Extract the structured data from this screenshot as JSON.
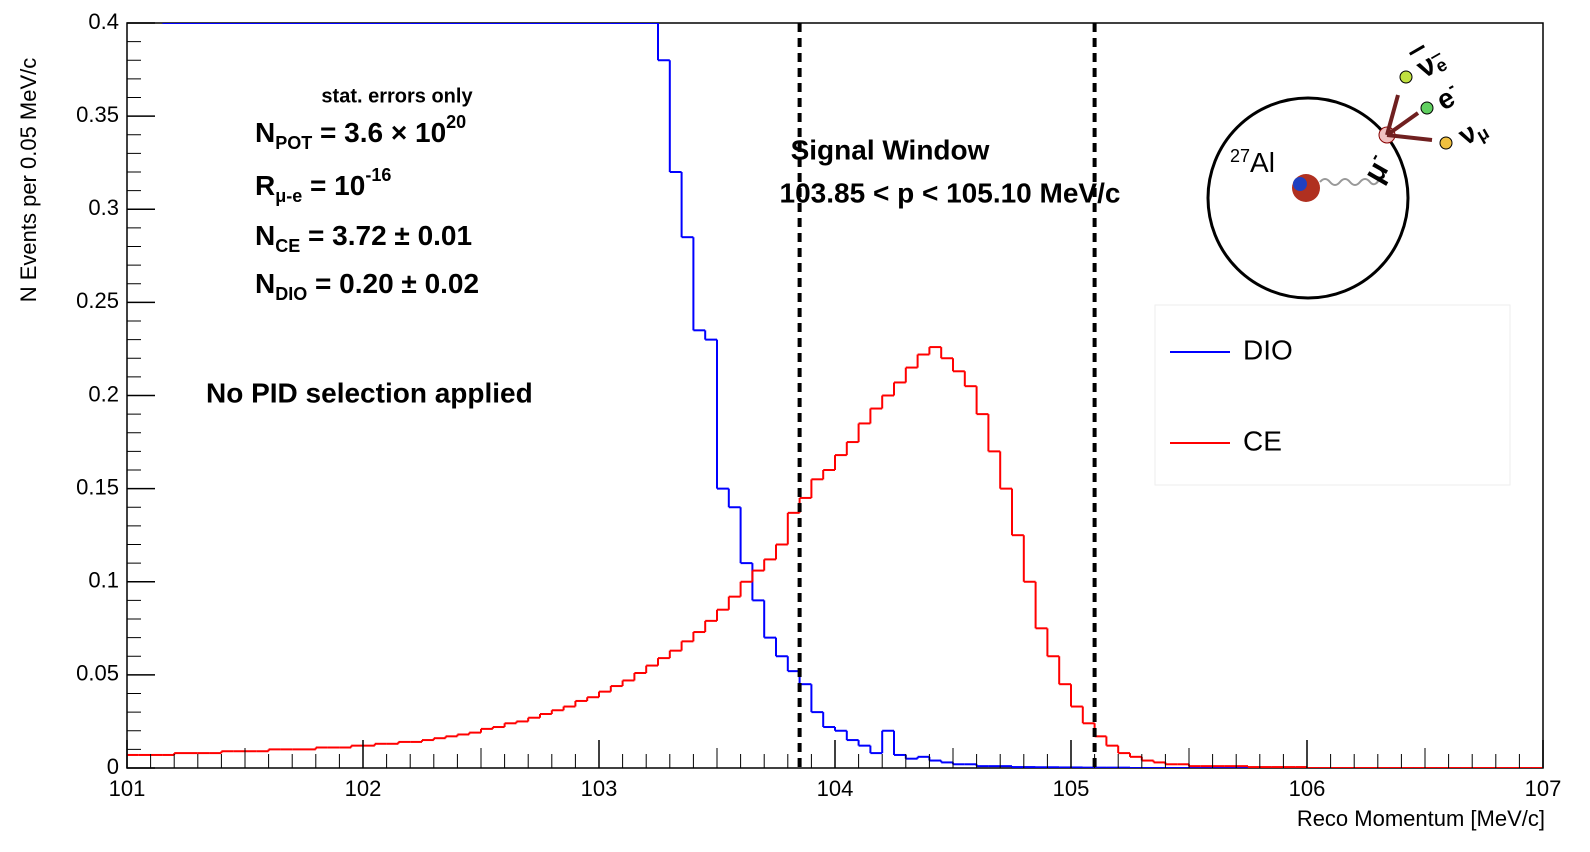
{
  "chart_data": {
    "type": "histogram",
    "xlabel": "Reco Momentum [MeV/c]",
    "ylabel": "N Events per 0.05 MeV/c",
    "xlim": [
      101,
      107
    ],
    "ylim": [
      0,
      0.4
    ],
    "xticks": [
      101,
      102,
      103,
      104,
      105,
      106,
      107
    ],
    "yticks": [
      0,
      0.05,
      0.1,
      0.15,
      0.2,
      0.25,
      0.3,
      0.35,
      0.4
    ],
    "bins": [
      101,
      101.05,
      101.1,
      101.15,
      101.2,
      101.25,
      101.3,
      101.35,
      101.4,
      101.45,
      101.5,
      101.55,
      101.6,
      101.65,
      101.7,
      101.75,
      101.8,
      101.85,
      101.9,
      101.95,
      102,
      102.05,
      102.1,
      102.15,
      102.2,
      102.25,
      102.3,
      102.35,
      102.4,
      102.45,
      102.5,
      102.55,
      102.6,
      102.65,
      102.7,
      102.75,
      102.8,
      102.85,
      102.9,
      102.95,
      103,
      103.05,
      103.1,
      103.15,
      103.2,
      103.25,
      103.3,
      103.35,
      103.4,
      103.45,
      103.5,
      103.55,
      103.6,
      103.65,
      103.7,
      103.75,
      103.8,
      103.85,
      103.9,
      103.95,
      104,
      104.05,
      104.1,
      104.15,
      104.2,
      104.25,
      104.3,
      104.35,
      104.4,
      104.45,
      104.5,
      104.55,
      104.6,
      104.65,
      104.7,
      104.75,
      104.8,
      104.85,
      104.9,
      104.95,
      105,
      105.05,
      105.1,
      105.15,
      105.2,
      105.25,
      105.3,
      105.35,
      105.4,
      105.45,
      105.5,
      105.55,
      105.6,
      105.65,
      105.7,
      105.75,
      105.8,
      105.85,
      105.9,
      105.95,
      106,
      106.05,
      106.1,
      106.15,
      106.2,
      106.25,
      106.3,
      106.35,
      106.4,
      106.45,
      106.5,
      106.55,
      106.6,
      106.65,
      106.7,
      106.75,
      106.8,
      106.85,
      106.9,
      106.95,
      107
    ],
    "series": [
      {
        "name": "DIO",
        "color": "#0000ff",
        "values": [
          null,
          null,
          null,
          0.4,
          0.4,
          0.4,
          0.4,
          0.4,
          0.4,
          0.4,
          0.4,
          0.4,
          0.4,
          0.4,
          0.4,
          0.4,
          0.4,
          0.4,
          0.4,
          0.4,
          0.4,
          0.4,
          0.4,
          0.4,
          0.4,
          0.4,
          0.4,
          0.4,
          0.4,
          0.4,
          0.4,
          0.4,
          0.4,
          0.4,
          0.4,
          0.4,
          0.4,
          0.4,
          0.4,
          0.4,
          0.4,
          0.4,
          0.4,
          0.4,
          0.4,
          0.38,
          0.32,
          0.285,
          0.235,
          0.23,
          0.15,
          0.14,
          0.11,
          0.09,
          0.07,
          0.06,
          0.052,
          0.045,
          0.03,
          0.022,
          0.02,
          0.015,
          0.012,
          0.008,
          0.02,
          0.007,
          0.005,
          0.006,
          0.004,
          0.003,
          0.002,
          0.002,
          0.001,
          0.001,
          0.001,
          0.0005,
          0.0005,
          0.0004,
          0.0004,
          0.0003,
          0.0003,
          0.0002,
          0.0002,
          0.0002,
          0.0002,
          0,
          0,
          0,
          0,
          0,
          0,
          0,
          0,
          0,
          0,
          0,
          0,
          0,
          0,
          0,
          0,
          0,
          0,
          0,
          0,
          0,
          0,
          0,
          0,
          0,
          0,
          0,
          0,
          0,
          0,
          0,
          0,
          0,
          0,
          0
        ]
      },
      {
        "name": "CE",
        "color": "#ff0000",
        "values": [
          0.007,
          0.007,
          0.007,
          0.007,
          0.008,
          0.008,
          0.008,
          0.008,
          0.009,
          0.009,
          0.009,
          0.009,
          0.01,
          0.01,
          0.01,
          0.01,
          0.011,
          0.011,
          0.011,
          0.012,
          0.012,
          0.013,
          0.013,
          0.014,
          0.014,
          0.015,
          0.016,
          0.017,
          0.018,
          0.019,
          0.021,
          0.022,
          0.024,
          0.025,
          0.027,
          0.029,
          0.031,
          0.033,
          0.036,
          0.038,
          0.041,
          0.044,
          0.047,
          0.051,
          0.055,
          0.059,
          0.063,
          0.068,
          0.073,
          0.079,
          0.085,
          0.092,
          0.1,
          0.106,
          0.112,
          0.12,
          0.137,
          0.145,
          0.155,
          0.16,
          0.168,
          0.175,
          0.185,
          0.193,
          0.2,
          0.207,
          0.215,
          0.222,
          0.226,
          0.22,
          0.213,
          0.205,
          0.19,
          0.17,
          0.15,
          0.125,
          0.1,
          0.075,
          0.06,
          0.045,
          0.033,
          0.024,
          0.017,
          0.012,
          0.008,
          0.006,
          0.004,
          0.003,
          0.002,
          0.002,
          0.001,
          0.001,
          0.001,
          0.001,
          0.001,
          0.0005,
          0.0005,
          0.0005,
          0.0005,
          0.0005,
          0,
          0,
          0,
          0,
          0,
          0,
          0,
          0,
          0,
          0,
          0,
          0,
          0,
          0,
          0,
          0,
          0,
          0,
          0,
          0
        ]
      }
    ],
    "signal_window": [
      103.85,
      105.1
    ],
    "annotations": {
      "stat": "stat. errors only",
      "npot": [
        "N",
        "POT",
        " = 3.6  × 10",
        "20"
      ],
      "rmue": [
        "R",
        "μ-e",
        " = 10",
        "-16"
      ],
      "nce": [
        "N",
        "CE",
        " = 3.72  ± 0.01"
      ],
      "ndio": [
        "N",
        "DIO",
        " = 0.20  ± 0.02"
      ],
      "pid": "No PID selection applied",
      "window_title": "Signal Window",
      "window_range": "103.85 < p < 105.10 MeV/c"
    },
    "inset": {
      "nucleus": [
        "27",
        "Al"
      ],
      "muon": [
        "μ",
        "-"
      ],
      "nubar_e": [
        "ν",
        "e"
      ],
      "electron": [
        "e",
        "-"
      ],
      "nu_mu": [
        "ν",
        "μ"
      ]
    }
  }
}
